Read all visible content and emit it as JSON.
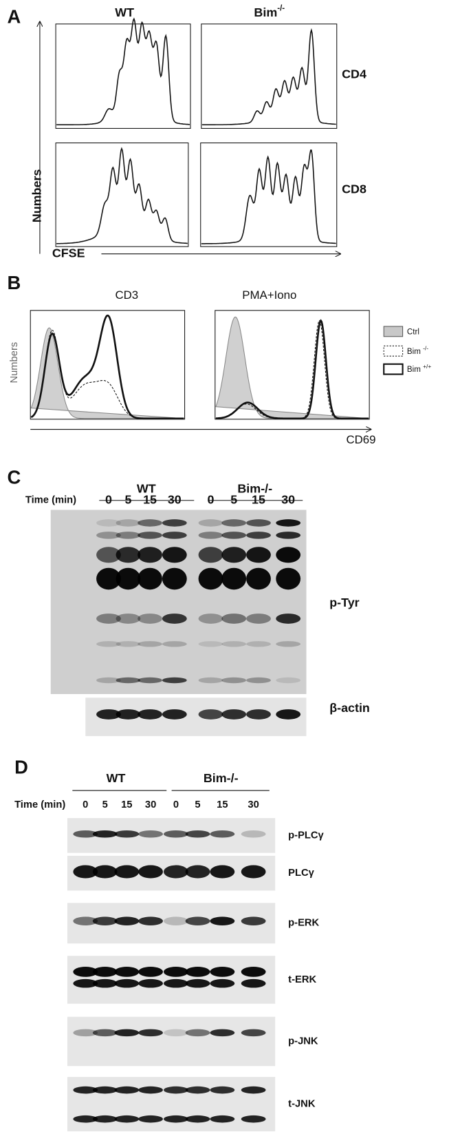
{
  "panel_a": {
    "label": "A",
    "columns": [
      {
        "text": "WT"
      },
      {
        "text": "Bim",
        "sup": "-/-"
      }
    ],
    "rows": [
      "CD4",
      "CD8"
    ],
    "y_axis": "Numbers",
    "x_axis": "CFSE"
  },
  "panel_b": {
    "label": "B",
    "titles": [
      "CD3",
      "PMA+Iono"
    ],
    "y_axis": "Numbers",
    "x_axis": "CD69",
    "legend": [
      {
        "text": "Ctrl"
      },
      {
        "text": "Bim ",
        "sup": "-/-"
      },
      {
        "text": "Bim ",
        "sup": "+/+"
      }
    ]
  },
  "panel_c": {
    "label": "C",
    "groups": [
      "WT",
      "Bim-/-"
    ],
    "time_label": "Time (min)",
    "times": [
      "0",
      "5",
      "15",
      "30",
      "0",
      "5",
      "15",
      "30"
    ],
    "blots": [
      "p-Tyr",
      "β-actin"
    ]
  },
  "panel_d": {
    "label": "D",
    "groups": [
      "WT",
      "Bim-/-"
    ],
    "time_label": "Time (min)",
    "times": [
      "0",
      "5",
      "15",
      "30",
      "0",
      "5",
      "15",
      "30"
    ],
    "blots": [
      "p-PLCγ",
      "PLCγ",
      "p-ERK",
      "t-ERK",
      "p-JNK",
      "t-JNK"
    ]
  }
}
